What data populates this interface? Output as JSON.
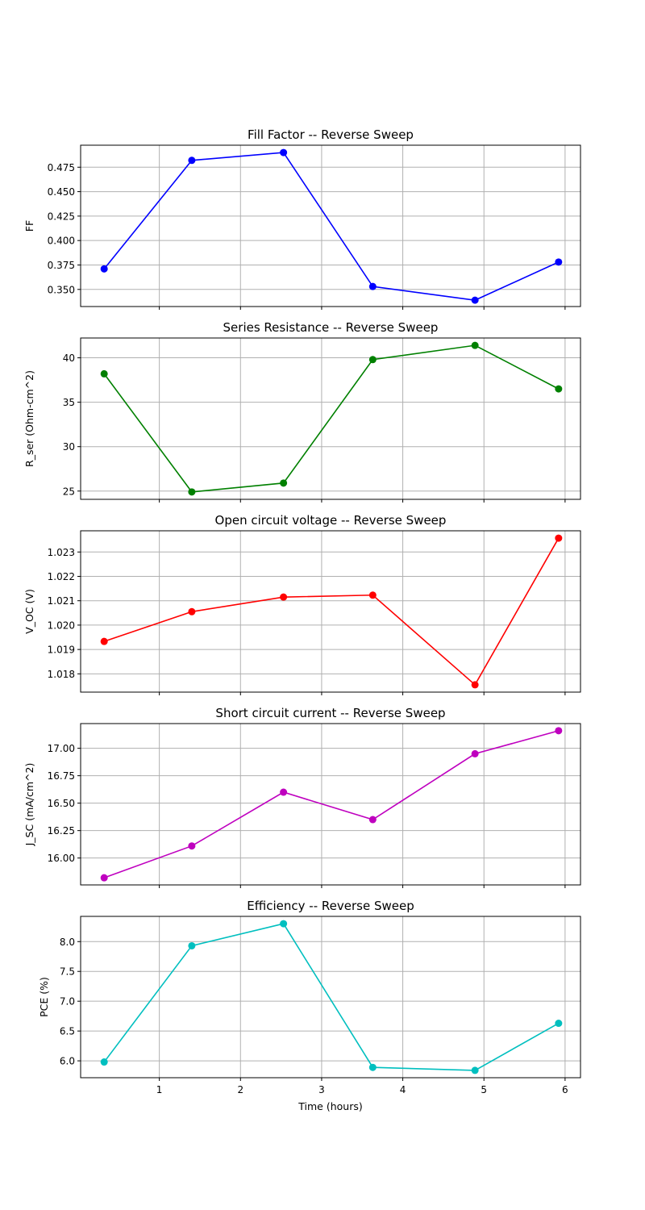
{
  "chart_data": [
    {
      "type": "line",
      "title": "Fill Factor -- Reverse Sweep",
      "ylabel": "FF",
      "xlabel": "",
      "color": "#0000ff",
      "x": [
        0.32,
        1.4,
        2.53,
        3.63,
        4.89,
        5.92
      ],
      "values": [
        0.371,
        0.482,
        0.49,
        0.353,
        0.339,
        0.378
      ],
      "xlim": [
        0.03,
        6.19
      ],
      "ylim": [
        0.3325,
        0.4975
      ],
      "yticks": [
        0.35,
        0.375,
        0.4,
        0.425,
        0.45,
        0.475
      ],
      "ytick_labels": [
        "0.350",
        "0.375",
        "0.400",
        "0.425",
        "0.450",
        "0.475"
      ],
      "xticks": [
        1,
        2,
        3,
        4,
        5,
        6
      ],
      "xtick_labels": [],
      "grid": true
    },
    {
      "type": "line",
      "title": "Series Resistance -- Reverse Sweep",
      "ylabel": "R_ser (Ohm-cm^2)",
      "xlabel": "",
      "color": "#008000",
      "x": [
        0.32,
        1.4,
        2.53,
        3.63,
        4.89,
        5.92
      ],
      "values": [
        38.2,
        24.9,
        25.9,
        39.8,
        41.4,
        36.5
      ],
      "xlim": [
        0.03,
        6.19
      ],
      "ylim": [
        24.07,
        42.23
      ],
      "yticks": [
        25,
        30,
        35,
        40
      ],
      "ytick_labels": [
        "25",
        "30",
        "35",
        "40"
      ],
      "xticks": [
        1,
        2,
        3,
        4,
        5,
        6
      ],
      "xtick_labels": [],
      "grid": true
    },
    {
      "type": "line",
      "title": "Open circuit voltage -- Reverse Sweep",
      "ylabel": "V_OC (V)",
      "xlabel": "",
      "color": "#ff0000",
      "x": [
        0.32,
        1.4,
        2.53,
        3.63,
        4.89,
        5.92
      ],
      "values": [
        1.01933,
        1.02055,
        1.02115,
        1.02123,
        1.01755,
        1.02357
      ],
      "xlim": [
        0.03,
        6.19
      ],
      "ylim": [
        1.01725,
        1.02387
      ],
      "yticks": [
        1.018,
        1.019,
        1.02,
        1.021,
        1.022,
        1.023
      ],
      "ytick_labels": [
        "1.018",
        "1.019",
        "1.020",
        "1.021",
        "1.022",
        "1.023"
      ],
      "xticks": [
        1,
        2,
        3,
        4,
        5,
        6
      ],
      "xtick_labels": [],
      "grid": true
    },
    {
      "type": "line",
      "title": "Short circuit current -- Reverse Sweep",
      "ylabel": "J_SC (mA/cm^2)",
      "xlabel": "",
      "color": "#bf00bf",
      "x": [
        0.32,
        1.4,
        2.53,
        3.63,
        4.89,
        5.92
      ],
      "values": [
        15.82,
        16.11,
        16.6,
        16.35,
        16.95,
        17.16
      ],
      "xlim": [
        0.03,
        6.19
      ],
      "ylim": [
        15.755,
        17.225
      ],
      "yticks": [
        16.0,
        16.25,
        16.5,
        16.75,
        17.0
      ],
      "ytick_labels": [
        "16.00",
        "16.25",
        "16.50",
        "16.75",
        "17.00"
      ],
      "xticks": [
        1,
        2,
        3,
        4,
        5,
        6
      ],
      "xtick_labels": [],
      "grid": true
    },
    {
      "type": "line",
      "title": "Efficiency -- Reverse Sweep",
      "ylabel": "PCE (%)",
      "xlabel": "Time (hours)",
      "color": "#00bfbf",
      "x": [
        0.32,
        1.4,
        2.53,
        3.63,
        4.89,
        5.92
      ],
      "values": [
        5.98,
        7.93,
        8.3,
        5.89,
        5.84,
        6.63
      ],
      "xlim": [
        0.03,
        6.19
      ],
      "ylim": [
        5.717,
        8.423
      ],
      "yticks": [
        6.0,
        6.5,
        7.0,
        7.5,
        8.0
      ],
      "ytick_labels": [
        "6.0",
        "6.5",
        "7.0",
        "7.5",
        "8.0"
      ],
      "xticks": [
        1,
        2,
        3,
        4,
        5,
        6
      ],
      "xtick_labels": [
        "1",
        "2",
        "3",
        "4",
        "5",
        "6"
      ],
      "grid": true
    }
  ]
}
